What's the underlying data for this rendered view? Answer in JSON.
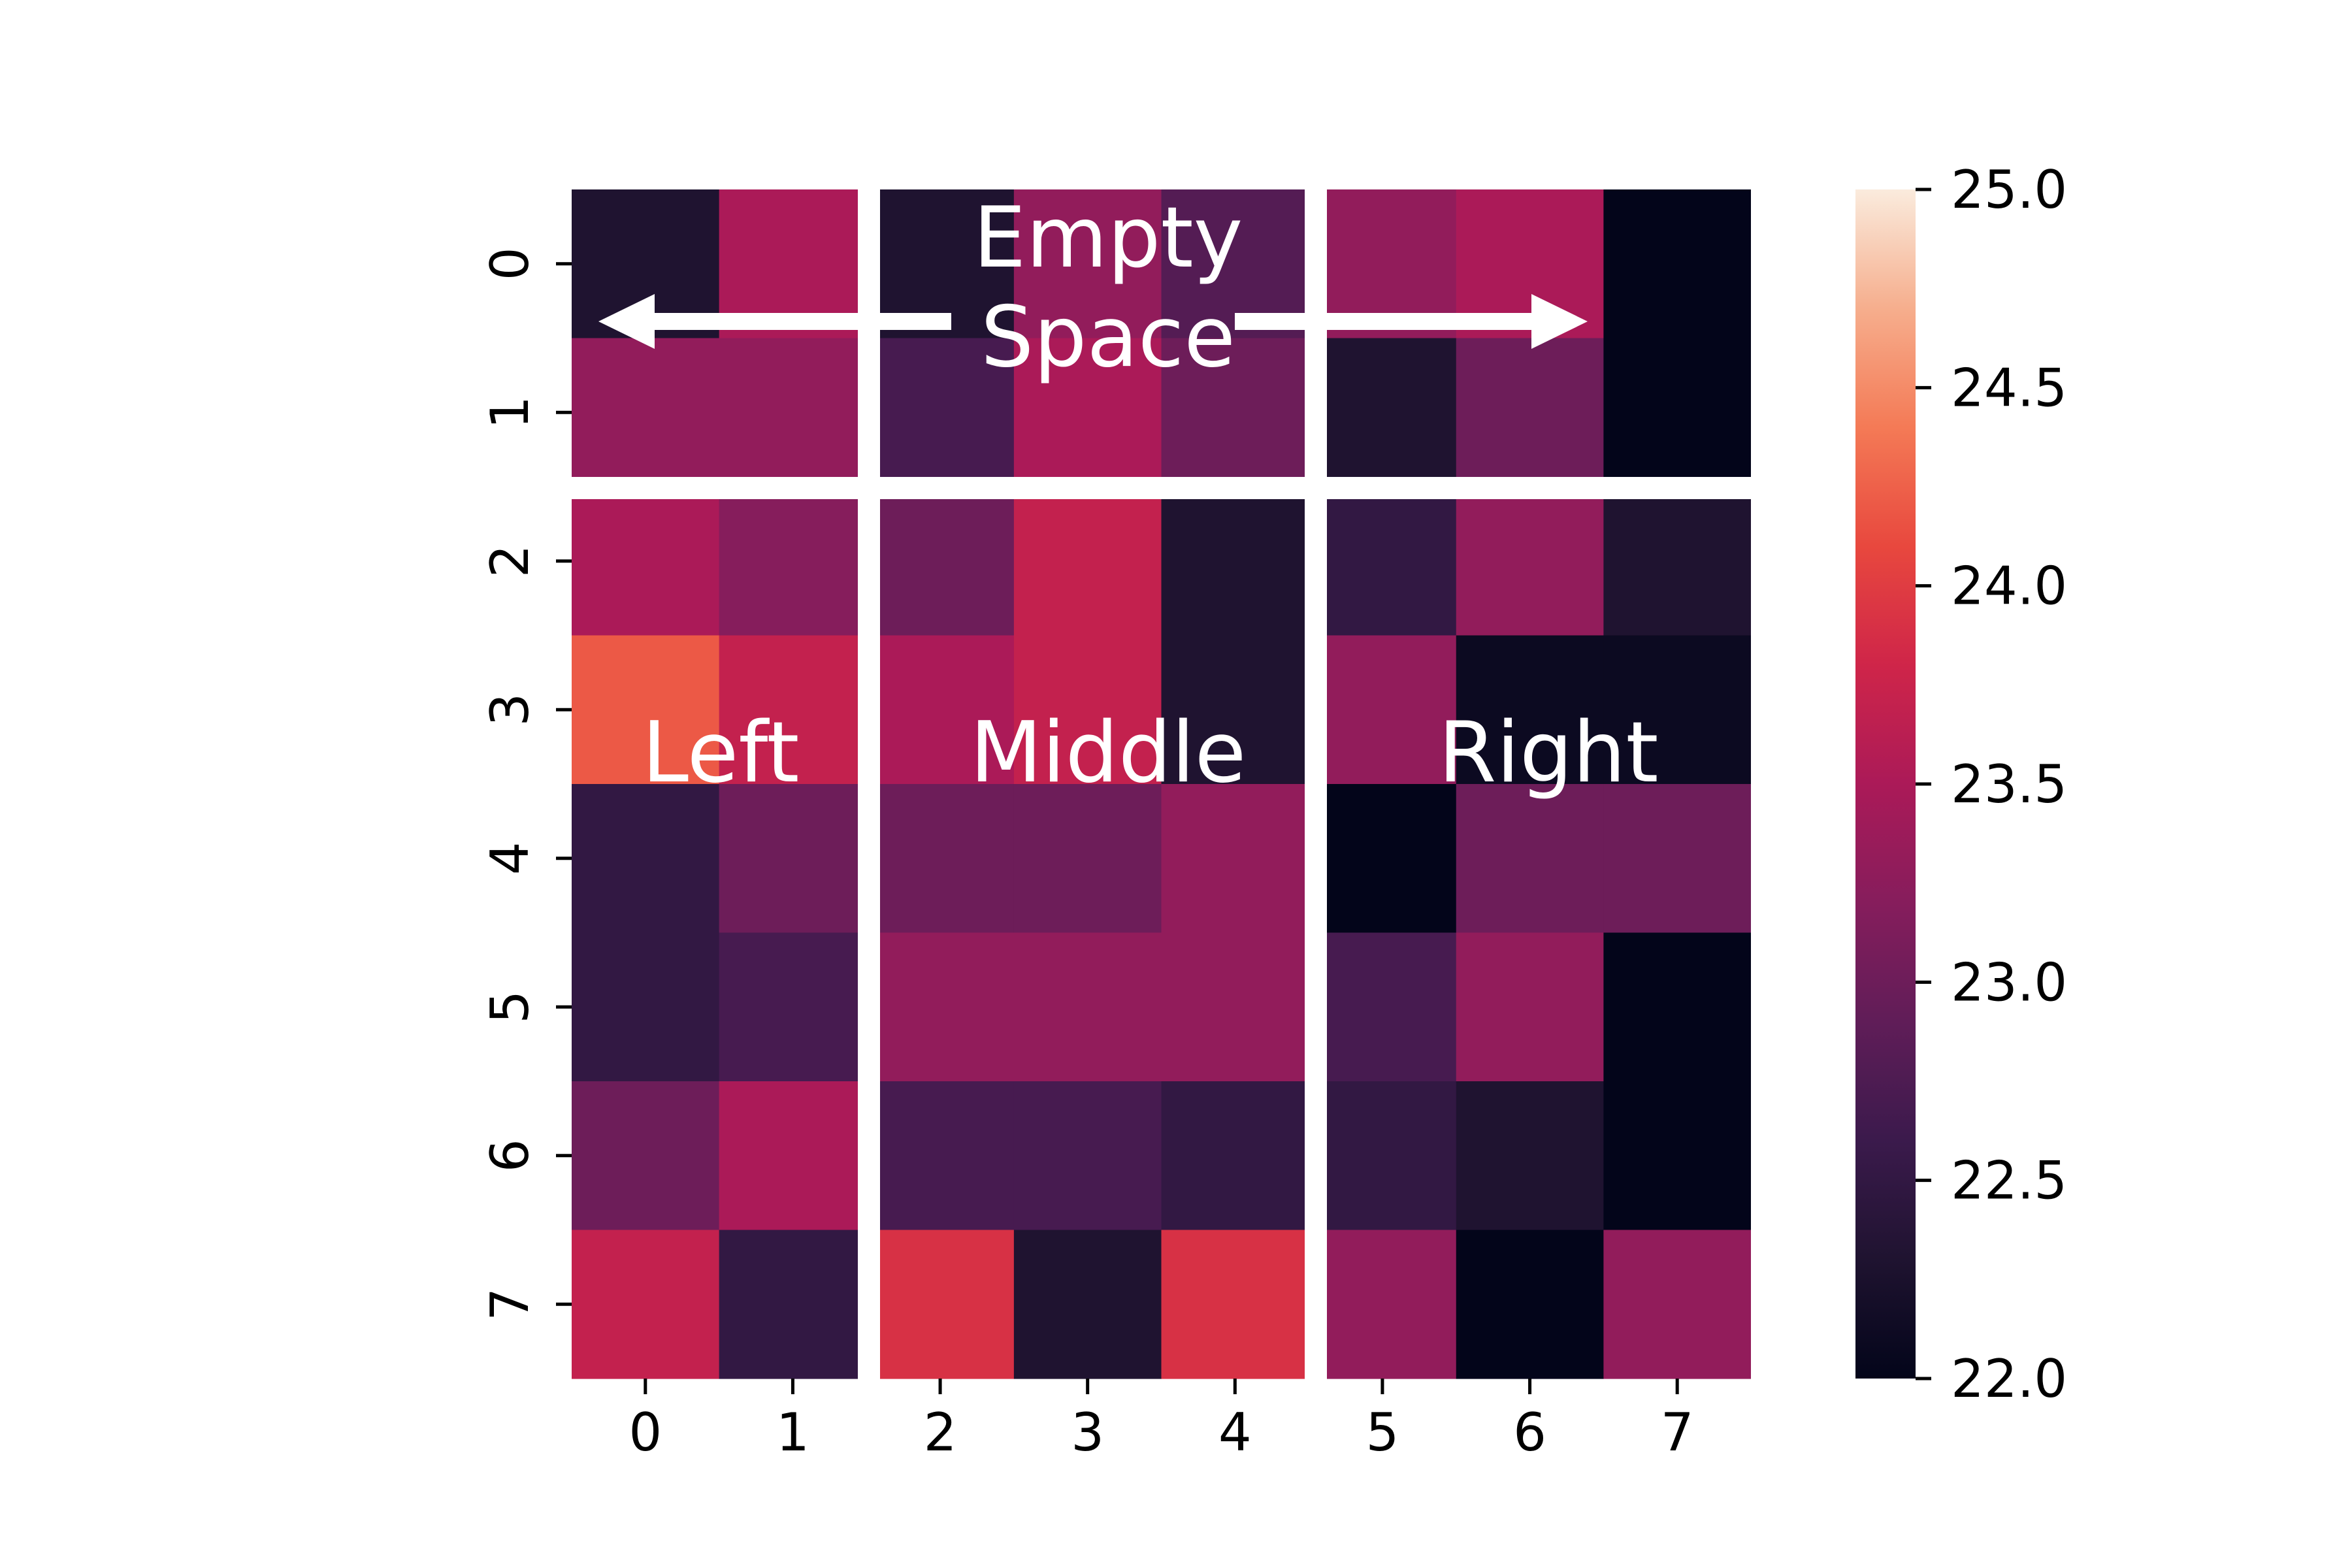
{
  "chart_data": {
    "type": "heatmap",
    "x_categories": [
      "0",
      "1",
      "2",
      "3",
      "4",
      "5",
      "6",
      "7"
    ],
    "y_categories": [
      "0",
      "1",
      "2",
      "3",
      "4",
      "5",
      "6",
      "7"
    ],
    "values": [
      [
        22.3,
        23.5,
        22.3,
        23.3,
        22.8,
        23.3,
        23.5,
        22.0
      ],
      [
        23.3,
        23.3,
        22.7,
        23.5,
        23.0,
        22.3,
        23.0,
        22.0
      ],
      [
        23.5,
        23.2,
        23.0,
        23.7,
        22.3,
        22.5,
        23.3,
        22.3
      ],
      [
        24.2,
        23.7,
        23.5,
        23.7,
        22.3,
        23.3,
        22.1,
        22.1
      ],
      [
        22.5,
        23.0,
        23.0,
        23.0,
        23.3,
        22.0,
        23.0,
        23.0
      ],
      [
        22.5,
        22.7,
        23.3,
        23.3,
        23.3,
        22.7,
        23.3,
        22.0
      ],
      [
        23.0,
        23.5,
        22.7,
        22.7,
        22.5,
        22.5,
        22.3,
        22.0
      ],
      [
        23.7,
        22.5,
        23.9,
        22.3,
        23.9,
        23.3,
        22.0,
        23.3
      ]
    ],
    "colorbar": {
      "min": 22.0,
      "max": 25.0,
      "ticks": [
        "22.0",
        "22.5",
        "23.0",
        "23.5",
        "24.0",
        "24.5",
        "25.0"
      ],
      "colormap": "rocket"
    },
    "annotations": {
      "top": [
        "Empty",
        "Space"
      ],
      "left": "Left",
      "middle": "Middle",
      "right": "Right"
    },
    "divider_color": "#ffffff"
  }
}
